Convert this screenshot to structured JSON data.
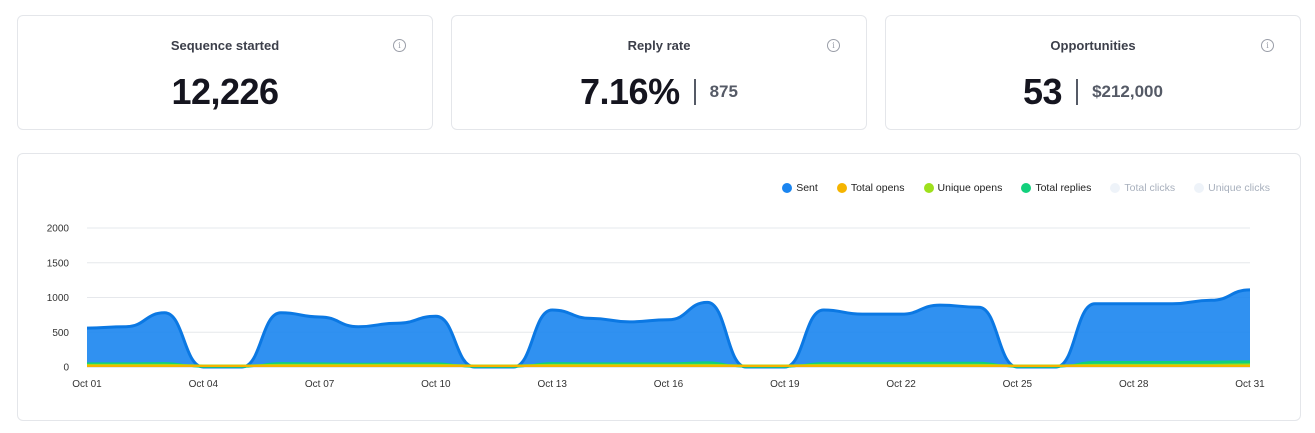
{
  "stats": [
    {
      "title": "Sequence started",
      "value": "12,226",
      "sub": ""
    },
    {
      "title": "Reply rate",
      "value": "7.16%",
      "sub": "875"
    },
    {
      "title": "Opportunities",
      "value": "53",
      "sub": "$212,000"
    }
  ],
  "info_icon_glyph": "i",
  "legend": [
    {
      "label": "Sent",
      "color": "#1a85f0",
      "muted": false
    },
    {
      "label": "Total opens",
      "color": "#f5b400",
      "muted": false
    },
    {
      "label": "Unique opens",
      "color": "#9ee01c",
      "muted": false
    },
    {
      "label": "Total replies",
      "color": "#12d07c",
      "muted": false
    },
    {
      "label": "Total clicks",
      "color": "#eef3f9",
      "muted": true
    },
    {
      "label": "Unique clicks",
      "color": "#eef3f9",
      "muted": true
    }
  ],
  "chart_data": {
    "type": "area",
    "x": [
      "Oct 01",
      "Oct 02",
      "Oct 03",
      "Oct 04",
      "Oct 05",
      "Oct 06",
      "Oct 07",
      "Oct 08",
      "Oct 09",
      "Oct 10",
      "Oct 11",
      "Oct 12",
      "Oct 13",
      "Oct 14",
      "Oct 15",
      "Oct 16",
      "Oct 17",
      "Oct 18",
      "Oct 19",
      "Oct 20",
      "Oct 21",
      "Oct 22",
      "Oct 23",
      "Oct 24",
      "Oct 25",
      "Oct 26",
      "Oct 27",
      "Oct 28",
      "Oct 29",
      "Oct 30",
      "Oct 31"
    ],
    "x_tick_labels": [
      "Oct 01",
      "Oct 04",
      "Oct 07",
      "Oct 10",
      "Oct 13",
      "Oct 16",
      "Oct 19",
      "Oct 22",
      "Oct 25",
      "Oct 28",
      "Oct 31"
    ],
    "y_ticks": [
      0,
      500,
      1000,
      1500,
      2000
    ],
    "ylim": [
      0,
      2000
    ],
    "series": [
      {
        "name": "Sent",
        "color": "#1a85f0",
        "values": [
          560,
          580,
          780,
          0,
          0,
          780,
          720,
          580,
          630,
          730,
          0,
          0,
          820,
          700,
          650,
          680,
          930,
          0,
          0,
          820,
          760,
          760,
          890,
          860,
          0,
          0,
          910,
          910,
          910,
          960,
          1110
        ]
      },
      {
        "name": "Total replies",
        "color": "#12d07c",
        "values": [
          55,
          55,
          60,
          0,
          0,
          60,
          55,
          50,
          55,
          55,
          0,
          0,
          60,
          55,
          55,
          55,
          70,
          0,
          0,
          60,
          60,
          60,
          65,
          65,
          0,
          0,
          75,
          75,
          75,
          80,
          85
        ]
      },
      {
        "name": "Unique opens",
        "color": "#9ee01c",
        "values": [
          35,
          35,
          35,
          25,
          25,
          35,
          35,
          35,
          35,
          35,
          25,
          25,
          35,
          35,
          35,
          35,
          35,
          25,
          25,
          35,
          35,
          35,
          35,
          35,
          25,
          25,
          35,
          35,
          35,
          35,
          40
        ]
      },
      {
        "name": "Total opens",
        "color": "#f5b400",
        "values": [
          20,
          20,
          20,
          20,
          20,
          20,
          20,
          20,
          20,
          20,
          20,
          20,
          20,
          20,
          20,
          20,
          20,
          20,
          20,
          20,
          20,
          20,
          20,
          20,
          20,
          20,
          20,
          20,
          20,
          20,
          20
        ]
      }
    ]
  }
}
